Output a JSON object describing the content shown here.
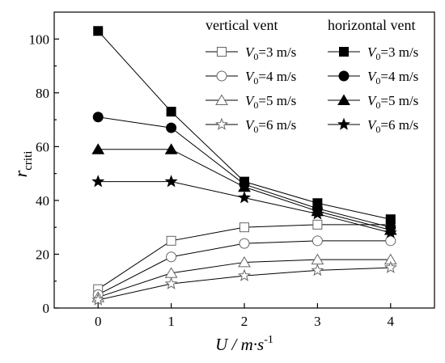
{
  "chart_data": {
    "type": "line",
    "title": "",
    "xlabel": "U / m·s",
    "xlabel_sup": "-1",
    "ylabel": "r",
    "ylabel_sub": "criti",
    "x": [
      0,
      1,
      2,
      3,
      4
    ],
    "xlim": [
      -0.6,
      4.6
    ],
    "ylim": [
      0,
      110
    ],
    "x_ticks": [
      "0",
      "1",
      "2",
      "3",
      "4"
    ],
    "y_ticks": [
      "0",
      "20",
      "40",
      "60",
      "80",
      "100"
    ],
    "grid": false,
    "legend": {
      "placement": "top-right",
      "group_titles": [
        "vertical vent",
        "horizontal vent"
      ],
      "entry_prefix": "V",
      "entry_prefix_sub": "0"
    },
    "series": [
      {
        "name": "=3 m/s",
        "group": "vertical vent",
        "marker": "square",
        "filled": false,
        "values": [
          7,
          25,
          30,
          31,
          31
        ]
      },
      {
        "name": "=4 m/s",
        "group": "vertical vent",
        "marker": "circle",
        "filled": false,
        "values": [
          5,
          19,
          24,
          25,
          25
        ]
      },
      {
        "name": "=5 m/s",
        "group": "vertical vent",
        "marker": "triangle",
        "filled": false,
        "values": [
          4,
          13,
          17,
          18,
          18
        ]
      },
      {
        "name": "=6 m/s",
        "group": "vertical vent",
        "marker": "star",
        "filled": false,
        "values": [
          3,
          9,
          12,
          14,
          15
        ]
      },
      {
        "name": "=3 m/s",
        "group": "horizontal vent",
        "marker": "square",
        "filled": true,
        "values": [
          103,
          73,
          47,
          39,
          33
        ]
      },
      {
        "name": "=4 m/s",
        "group": "horizontal vent",
        "marker": "circle",
        "filled": true,
        "values": [
          71,
          67,
          46,
          37,
          30
        ]
      },
      {
        "name": "=5 m/s",
        "group": "horizontal vent",
        "marker": "triangle",
        "filled": true,
        "values": [
          59,
          59,
          45,
          36,
          29
        ]
      },
      {
        "name": "=6 m/s",
        "group": "horizontal vent",
        "marker": "star",
        "filled": true,
        "values": [
          47,
          47,
          41,
          35,
          28
        ]
      }
    ]
  }
}
